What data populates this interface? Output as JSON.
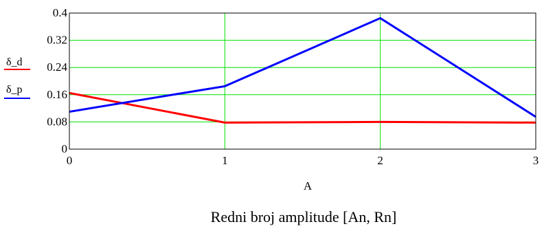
{
  "chart_data": {
    "type": "line",
    "x": [
      0,
      1,
      2,
      3
    ],
    "xlim": [
      0,
      3
    ],
    "ylim": [
      0,
      0.4
    ],
    "xticks": [
      "0",
      "1",
      "2",
      "3"
    ],
    "yticks": [
      "0",
      "0.08",
      "0.16",
      "0.24",
      "0.32",
      "0.4"
    ],
    "ytick_values": [
      0,
      0.08,
      0.16,
      0.24,
      0.32,
      0.4
    ],
    "xlabel": "A",
    "caption": "Redni broj amplitude [An, Rn]",
    "grid": true,
    "grid_color": "#00e000",
    "legend_placement": "left",
    "series": [
      {
        "name": "δ_d",
        "color": "#ff0000",
        "values": [
          0.165,
          0.078,
          0.08,
          0.078
        ]
      },
      {
        "name": "δ_p",
        "color": "#0000ff",
        "values": [
          0.11,
          0.185,
          0.385,
          0.095
        ]
      }
    ]
  }
}
